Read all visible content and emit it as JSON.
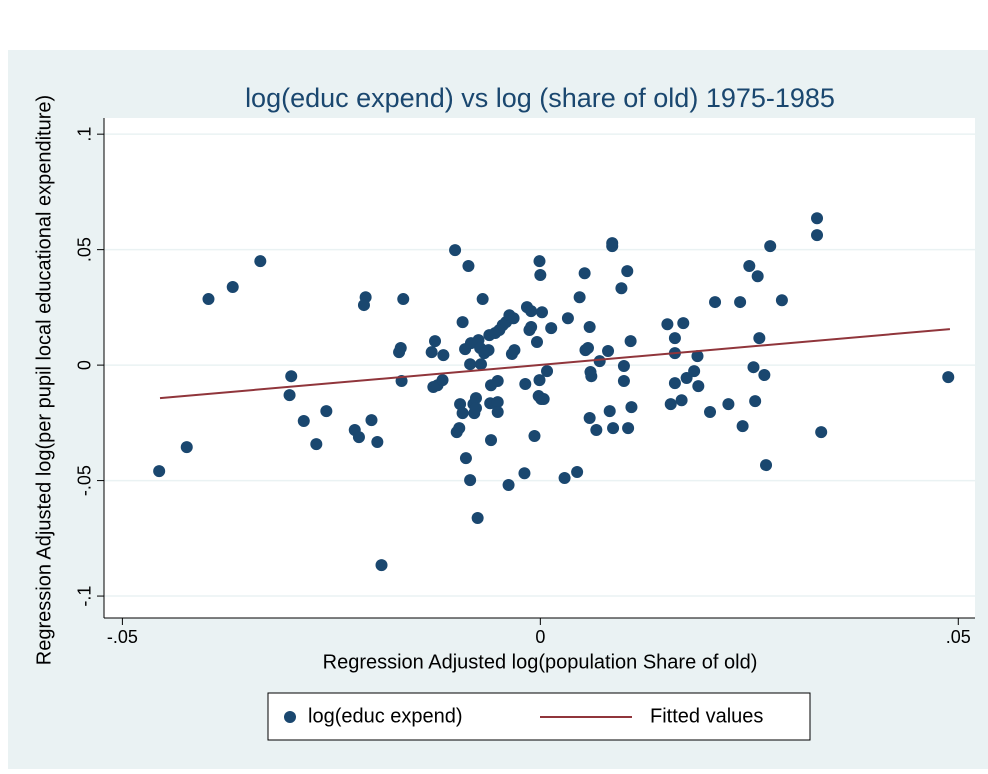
{
  "chart_data": {
    "type": "scatter",
    "title": "log(educ expend) vs log (share of old) 1975-1985",
    "x_label": "Regression Adjusted log(population Share of old)",
    "y_label": "Regression Adjusted log(per pupil local educational expenditure)",
    "xlim": [
      -0.0522,
      0.052
    ],
    "ylim": [
      -0.1095,
      0.107
    ],
    "xticks": [
      {
        "value": -0.05,
        "label": "-.05"
      },
      0,
      {
        "value": 0.05,
        "label": ".05"
      }
    ],
    "yticks": [
      {
        "value": -0.1,
        "label": "-.1"
      },
      {
        "value": -0.05,
        "label": "-.05"
      },
      0,
      {
        "value": 0.05,
        "label": ".05"
      },
      {
        "value": 0.1,
        "label": ".1"
      }
    ],
    "grid": true,
    "legend": "bottom",
    "series": [
      {
        "name": "log(educ expend)",
        "type": "scatter",
        "color": "#1a476f",
        "x": [
          -0.0456,
          -0.0423,
          -0.0397,
          -0.0368,
          -0.0335,
          -0.0298,
          -0.03,
          -0.0283,
          -0.0268,
          -0.0256,
          -0.0222,
          -0.0217,
          -0.0209,
          -0.0211,
          -0.0202,
          -0.0195,
          -0.019,
          -0.0169,
          -0.0167,
          -0.0166,
          -0.0164,
          -0.013,
          -0.0126,
          -0.0128,
          -0.0123,
          -0.0117,
          -0.0116,
          -0.0102,
          -0.01,
          -0.0097,
          -0.0096,
          -0.0093,
          -0.0093,
          -0.009,
          -0.0086,
          -0.0089,
          -0.0084,
          -0.0084,
          -0.0083,
          -0.008,
          -0.0079,
          -0.0077,
          -0.0077,
          -0.0075,
          -0.0074,
          -0.0072,
          -0.0071,
          -0.0069,
          -0.0067,
          -0.0062,
          -0.0061,
          -0.006,
          -0.0059,
          -0.0059,
          -0.0054,
          -0.0051,
          -0.0051,
          -0.0051,
          -0.0049,
          -0.0045,
          -0.0041,
          -0.0037,
          -0.0038,
          -0.0034,
          -0.0032,
          -0.0031,
          -0.0018,
          -0.0019,
          -0.0016,
          -0.0013,
          -0.0011,
          -0.0011,
          -0.0007,
          -0.0004,
          -0.0001,
          0,
          -0.0001,
          -0.0002,
          0.0001,
          0.0002,
          0.0004,
          0.0008,
          0.0013,
          0.0029,
          0.0033,
          0.0044,
          0.0047,
          0.0053,
          0.0054,
          0.0057,
          0.0059,
          0.0059,
          0.006,
          0.0061,
          0.0067,
          0.0071,
          0.0081,
          0.0083,
          0.0086,
          0.0086,
          0.0087,
          0.0097,
          0.01,
          0.01,
          0.0104,
          0.0105,
          0.0108,
          0.0109,
          0.0152,
          0.0156,
          0.0161,
          0.0161,
          0.0161,
          0.0169,
          0.0171,
          0.0175,
          0.0184,
          0.0188,
          0.0189,
          0.0203,
          0.0209,
          0.0225,
          0.0239,
          0.0242,
          0.025,
          0.0255,
          0.0257,
          0.026,
          0.0262,
          0.0268,
          0.027,
          0.0275,
          0.0289,
          0.0331,
          0.0331,
          0.0336,
          0.0488
        ],
        "values": [
          -0.0459,
          -0.0355,
          0.0286,
          0.0338,
          0.045,
          -0.0048,
          -0.013,
          -0.0242,
          -0.0342,
          -0.0199,
          -0.0281,
          -0.0312,
          0.0294,
          0.026,
          -0.0238,
          -0.0333,
          -0.0866,
          0.0056,
          0.0074,
          -0.0069,
          0.0286,
          0.0056,
          0.0104,
          -0.0095,
          -0.0087,
          -0.0065,
          0.0043,
          0.0498,
          -0.029,
          -0.0273,
          -0.0169,
          -0.0208,
          0.0186,
          0.0069,
          0.0429,
          -0.0403,
          -0.0498,
          0.0004,
          0.0095,
          -0.0169,
          -0.0208,
          -0.0143,
          -0.0186,
          -0.0662,
          0.0108,
          0.0074,
          0.0004,
          0.0286,
          0.0052,
          0.0065,
          0.013,
          -0.0165,
          -0.0087,
          -0.0325,
          0.0139,
          -0.0069,
          -0.016,
          -0.0203,
          0.0152,
          0.0173,
          0.0186,
          0.0216,
          -0.0519,
          0.0048,
          0.0203,
          0.0065,
          -0.0082,
          -0.0468,
          0.0251,
          0.0152,
          0.0165,
          0.0234,
          -0.0307,
          0.01,
          0.045,
          0.039,
          -0.0065,
          -0.0134,
          -0.0147,
          0.0229,
          -0.0147,
          -0.0026,
          0.016,
          -0.0489,
          0.0203,
          -0.0463,
          0.0294,
          0.0398,
          0.0065,
          0.0074,
          0.0165,
          -0.0229,
          -0.003,
          -0.0048,
          -0.0281,
          0.0017,
          0.0061,
          -0.0199,
          0.0528,
          0.0515,
          -0.0273,
          0.0333,
          -0.0004,
          -0.0069,
          0.0407,
          -0.0273,
          0.0104,
          -0.0182,
          0.0177,
          -0.0169,
          0.0052,
          0.0117,
          -0.0078,
          -0.0152,
          0.0182,
          -0.0056,
          -0.0026,
          0.0039,
          -0.0091,
          -0.0203,
          0.0273,
          -0.0169,
          0.0273,
          -0.0264,
          0.0429,
          -0.0009,
          -0.0156,
          0.0385,
          0.0117,
          -0.0043,
          -0.0433,
          0.0515,
          0.0281,
          0.0636,
          0.0563,
          -0.029,
          -0.0052
        ]
      },
      {
        "name": "Fitted values",
        "type": "line",
        "color": "#90353b",
        "x": [
          -0.0455,
          0.049
        ],
        "values": [
          -0.0143,
          0.0156
        ]
      }
    ]
  }
}
